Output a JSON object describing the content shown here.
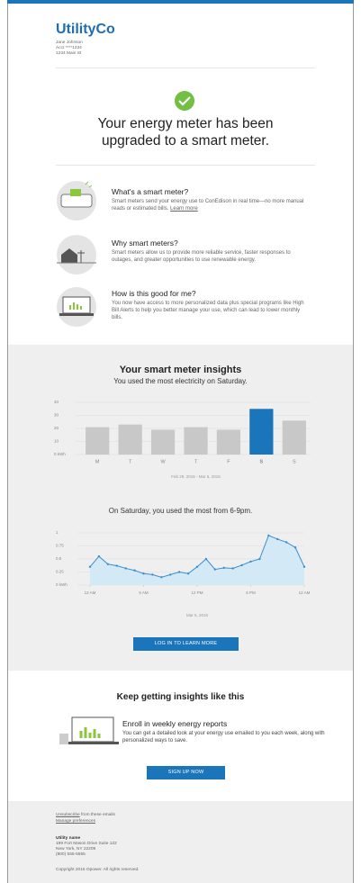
{
  "header": {
    "brand": "UtilityCo",
    "name": "Jane Johnson",
    "account": "Acct ****1234",
    "address": "1234 Main St"
  },
  "hero": {
    "title": "Your energy meter has been upgraded to a smart meter."
  },
  "features": [
    {
      "title": "What's a smart meter?",
      "body": "Smart meters send your energy use to ConEdison in real time—no more manual reads or estimated bills.",
      "link": "Learn more"
    },
    {
      "title": "Why smart meters?",
      "body": "Smart meters allow us to provide more reliable service, faster responses to outages, and greater opportunities to use renewable energy."
    },
    {
      "title": "How is this good for me?",
      "body": "You now have access to more personalized data plus special programs like High Bill Alerts to help you better manage your use, which can lead to lower monthly bills."
    }
  ],
  "insights": {
    "title": "Your smart meter insights",
    "subtitle": "You used the most electricity on Saturday.",
    "button": "LOG IN TO LEARN MORE"
  },
  "chart_data": [
    {
      "type": "bar",
      "xlabel": "Feb 29, 2016 - Mar 6, 2016",
      "categories": [
        "M",
        "T",
        "W",
        "T",
        "F",
        "S",
        "S"
      ],
      "values": [
        21,
        23,
        19,
        21,
        19,
        35,
        26
      ],
      "colors": [
        "#c8c8c8",
        "#c8c8c8",
        "#c8c8c8",
        "#c8c8c8",
        "#c8c8c8",
        "#1b75bb",
        "#c8c8c8"
      ],
      "ylim": [
        0,
        40
      ],
      "yticks": [
        {
          "value": 0,
          "label": "0 kWh"
        },
        10,
        20,
        30,
        40
      ],
      "grid": true
    },
    {
      "type": "line",
      "title": "On Saturday, you used the most from 6-9pm.",
      "xlabel": "Mar 5, 2016",
      "color": "#3a8fcf",
      "fill": "#d4e9f6",
      "x": [
        0,
        1,
        2,
        3,
        4,
        5,
        6,
        7,
        8,
        9,
        10,
        11,
        12,
        13,
        14,
        15,
        16,
        17,
        18,
        19,
        20,
        21,
        22,
        23,
        24
      ],
      "values": [
        0.35,
        0.55,
        0.4,
        0.37,
        0.32,
        0.28,
        0.22,
        0.2,
        0.15,
        0.2,
        0.25,
        0.22,
        0.35,
        0.5,
        0.3,
        0.33,
        0.32,
        0.38,
        0.45,
        0.5,
        0.95,
        0.88,
        0.82,
        0.72,
        0.35
      ],
      "xlim": [
        0,
        24
      ],
      "xticks": [
        {
          "value": 0,
          "label": "12 AM"
        },
        {
          "value": 6,
          "label": "6 AM"
        },
        {
          "value": 12,
          "label": "12 PM"
        },
        {
          "value": 18,
          "label": "6 PM"
        },
        {
          "value": 24,
          "label": "12 AM"
        }
      ],
      "ylim": [
        0,
        1
      ],
      "yticks": [
        {
          "value": 0,
          "label": "0 kWh"
        },
        0.25,
        0.5,
        0.75,
        1
      ],
      "grid": true
    }
  ],
  "enroll": {
    "title": "Keep getting insights like this",
    "heading": "Enroll in weekly energy reports",
    "body": "You can get a detailed look at your energy use emailed to you each week, along with personalized ways to save.",
    "button": "SIGN UP NOW"
  },
  "footer": {
    "unsubscribe_link": "Unsubscribe",
    "unsubscribe_rest": " from these emails",
    "preferences": "Manage preferences",
    "utility": "Utility name",
    "address1": "199 Fort Mason Drive Suite 122",
    "address2": "New York, NY 22209",
    "phone": "(800) 555-5555",
    "copyright": "Copyright 2016 Opower. All rights reserved."
  }
}
